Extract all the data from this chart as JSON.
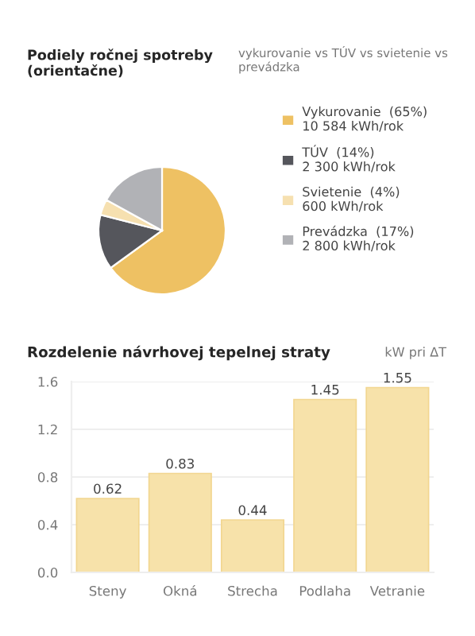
{
  "chart_data": [
    {
      "type": "pie",
      "title": "Podiely ročnej spotreby\n(orientačne)",
      "subtitle": "vykurovanie vs TÚV vs svietenie vs prevádzka",
      "categories": [
        "Vykurovanie",
        "TÚV",
        "Svietenie",
        "Prevádzka"
      ],
      "values": [
        65,
        14,
        4,
        17
      ],
      "value_labels": [
        "(65%)",
        "(14%)",
        "(4%)",
        "(17%)"
      ],
      "annotations": [
        "10 584 kWh/rok",
        "2 300 kWh/rok",
        "600 kWh/rok",
        "2 800 kWh/rok"
      ],
      "colors": [
        "#eec163",
        "#55565c",
        "#f6e0b0",
        "#b1b2b6"
      ],
      "legend": "right"
    },
    {
      "type": "bar",
      "title": "Rozdelenie návrhovej tepelnej straty",
      "ylabel": "kW pri ΔT",
      "categories": [
        "Steny",
        "Okná",
        "Strecha",
        "Podlaha",
        "Vetranie"
      ],
      "values": [
        0.62,
        0.83,
        0.44,
        1.45,
        1.55
      ],
      "color": "#f7e2aa",
      "ylim": [
        0,
        1.6
      ],
      "yticks": [
        {
          "value": 0,
          "label": "0.0"
        },
        0.4,
        0.8,
        1.2,
        1.6
      ],
      "grid": "y",
      "data_labels": true
    }
  ]
}
